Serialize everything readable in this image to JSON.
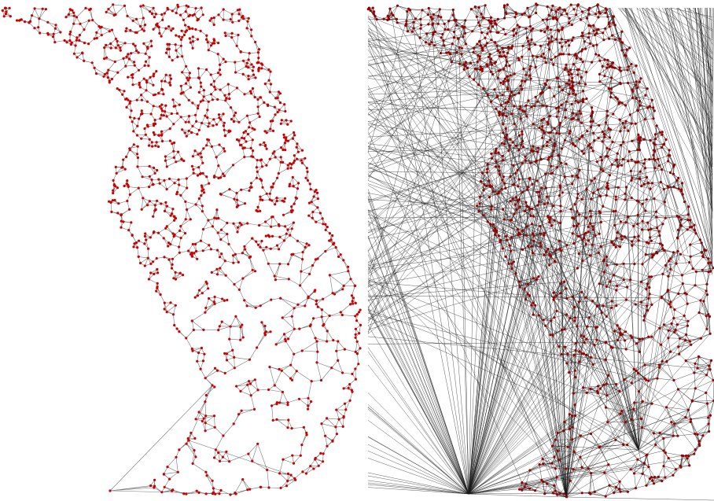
{
  "figure": {
    "panels": [
      {
        "id": "left",
        "description_kind": "sparse-road-network-graph",
        "node_color": "#cc0000",
        "edge_color": "#555555"
      },
      {
        "id": "right",
        "description_kind": "dense-triangulation-graph",
        "node_color": "#990000",
        "edge_color": "#1a1a1a"
      }
    ]
  },
  "colors": {
    "background": "#ffffff",
    "node_red": "#cc0000",
    "node_dark_red": "#990000",
    "edge_gray": "#555555",
    "edge_black": "#1a1a1a"
  }
}
